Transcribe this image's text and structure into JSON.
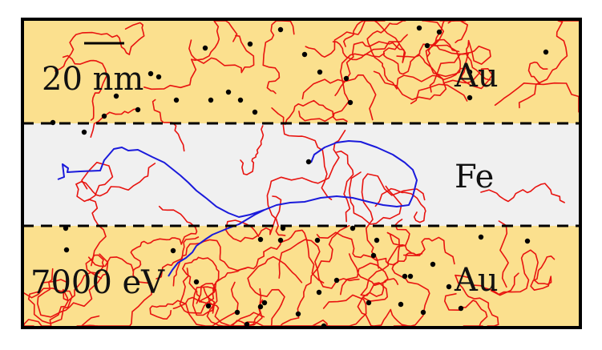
{
  "labels": {
    "scale_bar": "20 nm",
    "energy": "7000 eV",
    "layer_top": "Au",
    "layer_middle": "Fe",
    "layer_bottom": "Au"
  },
  "colors": {
    "gold_layer": "#fbe08e",
    "iron_layer": "#f0f0f0",
    "primary_track": "#1a1adb",
    "secondary_tracks": "#e8130f",
    "endpoints": "#000000",
    "frame": "#000000"
  }
}
